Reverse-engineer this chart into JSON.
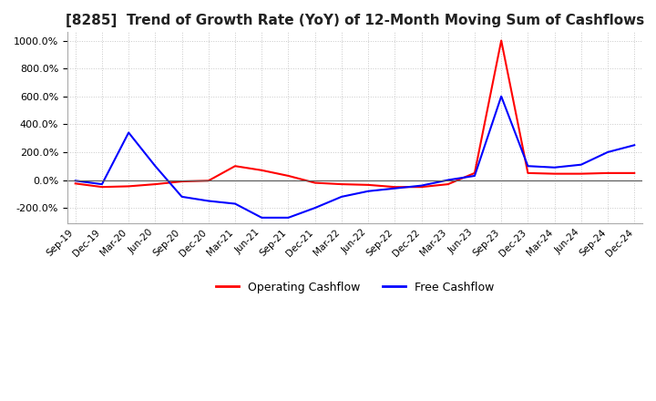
{
  "title": "[8285]  Trend of Growth Rate (YoY) of 12-Month Moving Sum of Cashflows",
  "x_labels": [
    "Sep-19",
    "Dec-19",
    "Mar-20",
    "Jun-20",
    "Sep-20",
    "Dec-20",
    "Mar-21",
    "Jun-21",
    "Sep-21",
    "Dec-21",
    "Mar-22",
    "Jun-22",
    "Sep-22",
    "Dec-22",
    "Mar-23",
    "Jun-23",
    "Sep-23",
    "Dec-23",
    "Mar-24",
    "Jun-24",
    "Sep-24",
    "Dec-24"
  ],
  "operating_cashflow": [
    -25,
    -50,
    -45,
    -30,
    -10,
    -5,
    100,
    70,
    30,
    -20,
    -30,
    -35,
    -50,
    -50,
    -30,
    50,
    1000,
    50,
    45,
    45,
    50,
    50
  ],
  "free_cashflow": [
    -5,
    -30,
    340,
    100,
    -120,
    -150,
    -170,
    -270,
    -270,
    -200,
    -120,
    -80,
    -60,
    -40,
    0,
    30,
    600,
    100,
    90,
    110,
    200,
    250
  ],
  "operating_color": "#ff0000",
  "free_color": "#0000ff",
  "ylim": [
    -310,
    1060
  ],
  "yticks": [
    -200,
    0,
    200,
    400,
    600,
    800,
    1000
  ],
  "background_color": "#ffffff",
  "grid_color": "#c8c8c8",
  "grid_style": "dotted",
  "title_fontsize": 11,
  "legend_labels": [
    "Operating Cashflow",
    "Free Cashflow"
  ]
}
